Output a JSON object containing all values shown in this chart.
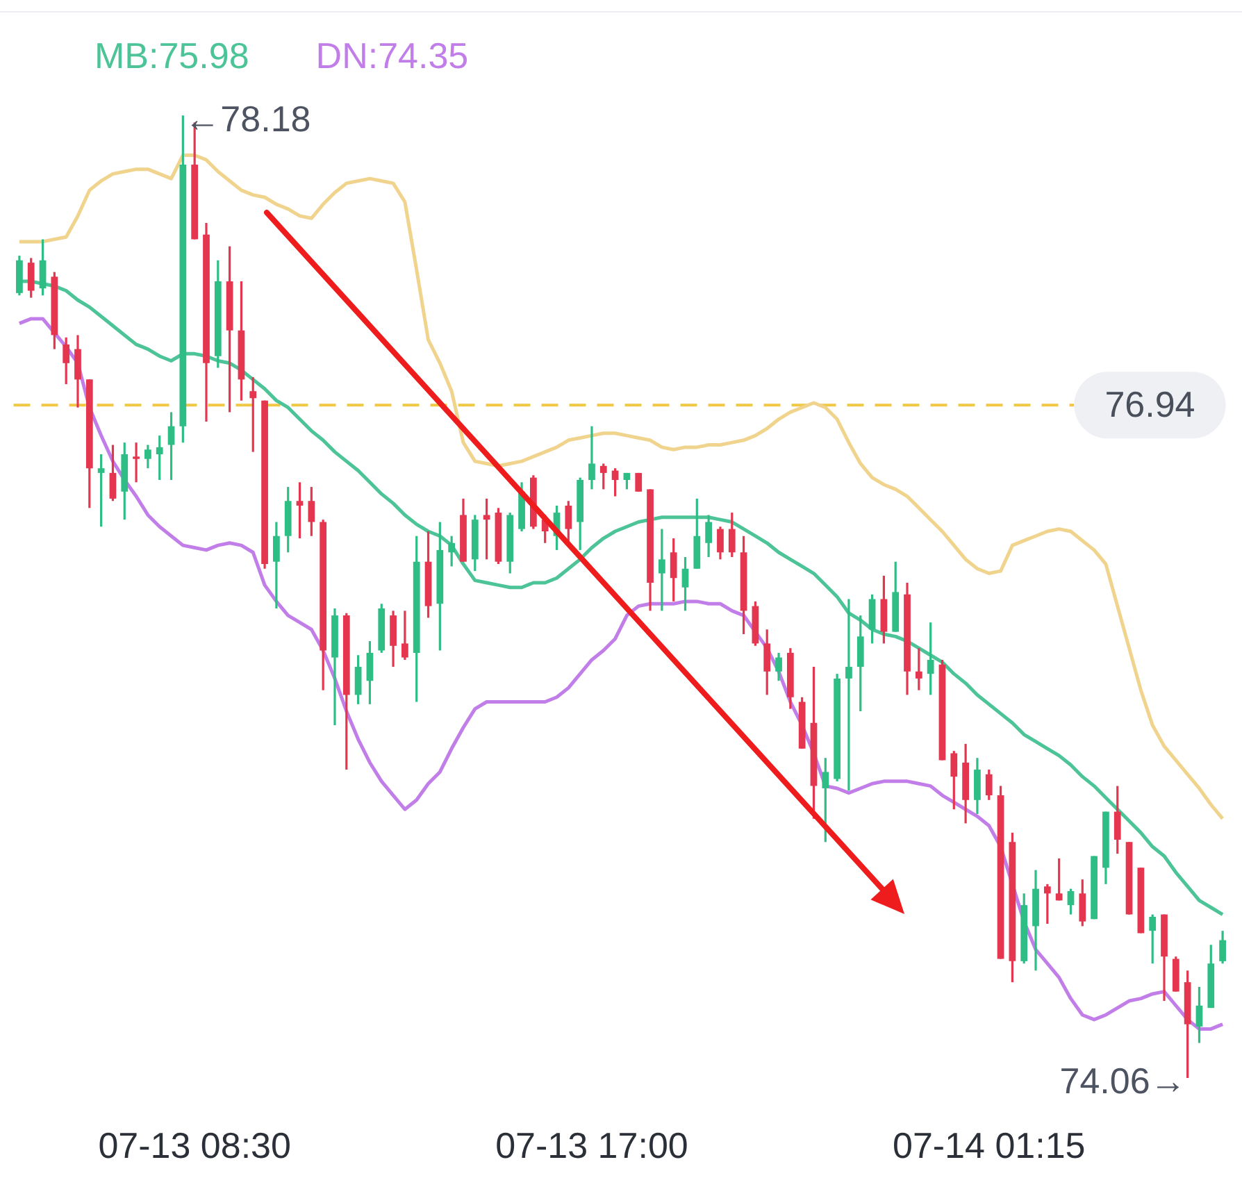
{
  "chart_data": {
    "type": "candlestick",
    "categories": [
      null,
      null,
      null,
      null,
      null,
      null,
      null,
      null,
      null,
      null,
      null,
      null,
      null,
      null,
      null,
      "07-13 08:30",
      null,
      null,
      null,
      null,
      null,
      null,
      null,
      null,
      null,
      null,
      null,
      null,
      null,
      null,
      null,
      null,
      null,
      null,
      null,
      null,
      null,
      null,
      null,
      null,
      null,
      null,
      null,
      null,
      null,
      null,
      null,
      null,
      null,
      "07-13 17:00",
      null,
      null,
      null,
      null,
      null,
      null,
      null,
      null,
      null,
      null,
      null,
      null,
      null,
      null,
      null,
      null,
      null,
      null,
      null,
      null,
      null,
      null,
      null,
      null,
      null,
      null,
      null,
      null,
      null,
      null,
      null,
      null,
      null,
      "07-14 01:15",
      null,
      null,
      null,
      null,
      null,
      null,
      null,
      null,
      null,
      null,
      null,
      null,
      null,
      null,
      null,
      null,
      null,
      null,
      null,
      null
    ],
    "ohlc": [
      [
        77.42,
        77.58,
        77.41,
        77.56
      ],
      [
        77.55,
        77.57,
        77.4,
        77.43
      ],
      [
        77.44,
        77.65,
        77.41,
        77.56
      ],
      [
        77.49,
        77.51,
        77.18,
        77.24
      ],
      [
        77.2,
        77.23,
        77.03,
        77.12
      ],
      [
        77.18,
        77.24,
        76.93,
        77.05
      ],
      [
        77.05,
        77.05,
        76.5,
        76.67
      ],
      [
        76.65,
        76.73,
        76.42,
        76.67
      ],
      [
        76.65,
        76.77,
        76.53,
        76.54
      ],
      [
        76.57,
        76.78,
        76.45,
        76.73
      ],
      [
        76.72,
        76.78,
        76.61,
        76.71
      ],
      [
        76.71,
        76.77,
        76.67,
        76.75
      ],
      [
        76.73,
        76.81,
        76.62,
        76.76
      ],
      [
        76.77,
        76.91,
        76.62,
        76.85
      ],
      [
        76.85,
        78.18,
        76.78,
        77.97
      ],
      [
        77.97,
        78.15,
        77.65,
        77.65
      ],
      [
        77.67,
        77.72,
        76.87,
        77.12
      ],
      [
        77.15,
        77.56,
        77.1,
        77.47
      ],
      [
        77.47,
        77.62,
        76.91,
        77.26
      ],
      [
        77.26,
        77.47,
        76.96,
        77.05
      ],
      [
        77.0,
        77.06,
        76.74,
        76.97
      ],
      [
        76.96,
        76.96,
        76.24,
        76.26
      ],
      [
        76.27,
        76.44,
        76.07,
        76.38
      ],
      [
        76.38,
        76.59,
        76.31,
        76.53
      ],
      [
        76.53,
        76.61,
        76.37,
        76.51
      ],
      [
        76.53,
        76.59,
        76.38,
        76.44
      ],
      [
        76.44,
        76.45,
        75.72,
        75.89
      ],
      [
        75.86,
        76.07,
        75.57,
        76.04
      ],
      [
        76.04,
        76.05,
        75.38,
        75.7
      ],
      [
        75.7,
        75.87,
        75.66,
        75.82
      ],
      [
        75.76,
        75.93,
        75.66,
        75.88
      ],
      [
        75.89,
        76.09,
        75.88,
        76.07
      ],
      [
        76.04,
        76.06,
        75.82,
        75.91
      ],
      [
        75.92,
        76.06,
        75.85,
        75.86
      ],
      [
        75.88,
        76.38,
        75.67,
        76.27
      ],
      [
        76.27,
        76.4,
        76.03,
        76.08
      ],
      [
        76.09,
        76.44,
        75.89,
        76.32
      ],
      [
        76.31,
        76.38,
        76.25,
        76.35
      ],
      [
        76.47,
        76.54,
        76.27,
        76.27
      ],
      [
        76.28,
        76.47,
        76.23,
        76.45
      ],
      [
        76.47,
        76.54,
        76.28,
        76.45
      ],
      [
        76.48,
        76.5,
        76.26,
        76.27
      ],
      [
        76.27,
        76.48,
        76.22,
        76.47
      ],
      [
        76.41,
        76.61,
        76.4,
        76.57
      ],
      [
        76.63,
        76.64,
        76.41,
        76.42
      ],
      [
        76.45,
        76.47,
        76.35,
        76.4
      ],
      [
        76.38,
        76.51,
        76.32,
        76.48
      ],
      [
        76.51,
        76.53,
        76.35,
        76.41
      ],
      [
        76.44,
        76.63,
        76.32,
        76.62
      ],
      [
        76.62,
        76.85,
        76.58,
        76.69
      ],
      [
        76.68,
        76.69,
        76.58,
        76.65
      ],
      [
        76.66,
        76.67,
        76.55,
        76.62
      ],
      [
        76.62,
        76.65,
        76.58,
        76.65
      ],
      [
        76.65,
        76.65,
        76.57,
        76.57
      ],
      [
        76.58,
        76.58,
        76.06,
        76.18
      ],
      [
        76.22,
        76.41,
        76.06,
        76.28
      ],
      [
        76.31,
        76.37,
        76.1,
        76.2
      ],
      [
        76.16,
        76.29,
        76.06,
        76.24
      ],
      [
        76.24,
        76.54,
        76.24,
        76.38
      ],
      [
        76.35,
        76.47,
        76.29,
        76.44
      ],
      [
        76.41,
        76.42,
        76.28,
        76.31
      ],
      [
        76.41,
        76.48,
        76.29,
        76.31
      ],
      [
        76.31,
        76.38,
        75.96,
        76.06
      ],
      [
        76.08,
        76.1,
        75.91,
        75.92
      ],
      [
        75.92,
        75.98,
        75.7,
        75.8
      ],
      [
        75.8,
        75.88,
        75.76,
        75.86
      ],
      [
        75.88,
        75.9,
        75.64,
        75.69
      ],
      [
        75.67,
        75.69,
        75.47,
        75.47
      ],
      [
        75.58,
        75.82,
        75.17,
        75.31
      ],
      [
        75.3,
        75.43,
        75.07,
        75.37
      ],
      [
        75.34,
        75.79,
        75.33,
        75.77
      ],
      [
        75.77,
        76.11,
        75.29,
        75.82
      ],
      [
        75.82,
        76.04,
        75.63,
        75.95
      ],
      [
        75.98,
        76.13,
        75.92,
        76.11
      ],
      [
        76.11,
        76.21,
        75.92,
        75.97
      ],
      [
        75.97,
        76.27,
        75.97,
        76.14
      ],
      [
        76.13,
        76.18,
        75.7,
        75.8
      ],
      [
        75.8,
        75.9,
        75.72,
        75.77
      ],
      [
        75.79,
        76.01,
        75.7,
        75.85
      ],
      [
        75.83,
        75.85,
        75.42,
        75.42
      ],
      [
        75.45,
        75.46,
        75.21,
        75.35
      ],
      [
        75.41,
        75.49,
        75.15,
        75.25
      ],
      [
        75.25,
        75.43,
        75.19,
        75.38
      ],
      [
        75.36,
        75.38,
        75.25,
        75.27
      ],
      [
        75.27,
        75.31,
        74.57,
        74.57
      ],
      [
        75.07,
        75.11,
        74.47,
        74.56
      ],
      [
        74.56,
        74.85,
        74.55,
        74.8
      ],
      [
        74.71,
        74.95,
        74.52,
        74.87
      ],
      [
        74.88,
        74.89,
        74.72,
        74.85
      ],
      [
        74.85,
        75.0,
        74.82,
        74.82
      ],
      [
        74.8,
        74.87,
        74.76,
        74.86
      ],
      [
        74.85,
        74.91,
        74.71,
        74.73
      ],
      [
        74.74,
        75.01,
        74.74,
        75.01
      ],
      [
        74.96,
        75.2,
        74.89,
        75.2
      ],
      [
        75.2,
        75.31,
        75.02,
        75.08
      ],
      [
        75.07,
        75.07,
        74.76,
        74.76
      ],
      [
        74.96,
        74.96,
        74.68,
        74.68
      ],
      [
        74.69,
        74.76,
        74.55,
        74.75
      ],
      [
        74.76,
        74.76,
        74.39,
        74.58
      ],
      [
        74.57,
        74.58,
        74.43,
        74.43
      ],
      [
        74.47,
        74.52,
        74.06,
        74.29
      ],
      [
        74.28,
        74.45,
        74.21,
        74.37
      ],
      [
        74.36,
        74.63,
        74.36,
        74.55
      ],
      [
        74.56,
        74.69,
        74.55,
        74.65
      ]
    ],
    "series": [
      {
        "type": "line",
        "color": "#f0d38c",
        "values": [
          77.64,
          77.64,
          77.64,
          77.65,
          77.66,
          77.75,
          77.86,
          77.9,
          77.93,
          77.94,
          77.95,
          77.95,
          77.93,
          77.91,
          78.01,
          78.01,
          77.99,
          77.94,
          77.9,
          77.86,
          77.84,
          77.83,
          77.8,
          77.78,
          77.75,
          77.74,
          77.8,
          77.85,
          77.89,
          77.9,
          77.91,
          77.9,
          77.89,
          77.81,
          77.52,
          77.22,
          77.12,
          77.0,
          76.78,
          76.7,
          76.69,
          76.68,
          76.69,
          76.7,
          76.72,
          76.74,
          76.76,
          76.79,
          76.8,
          76.81,
          76.82,
          76.82,
          76.81,
          76.8,
          76.79,
          76.76,
          76.75,
          76.76,
          76.76,
          76.77,
          76.77,
          76.78,
          76.79,
          76.81,
          76.84,
          76.88,
          76.91,
          76.93,
          76.95,
          76.93,
          76.88,
          76.78,
          76.69,
          76.63,
          76.6,
          76.58,
          76.55,
          76.5,
          76.45,
          76.4,
          76.34,
          76.28,
          76.24,
          76.22,
          76.23,
          76.34,
          76.36,
          76.38,
          76.4,
          76.41,
          76.4,
          76.36,
          76.32,
          76.26,
          76.08,
          75.9,
          75.72,
          75.57,
          75.48,
          75.42,
          75.36,
          75.3,
          75.23,
          75.17
        ]
      },
      {
        "type": "line",
        "name": "MB:75.98",
        "color": "#4cc497",
        "values": [
          77.47,
          77.47,
          77.46,
          77.45,
          77.43,
          77.39,
          77.36,
          77.32,
          77.28,
          77.24,
          77.2,
          77.18,
          77.15,
          77.13,
          77.16,
          77.16,
          77.15,
          77.13,
          77.12,
          77.09,
          77.05,
          77.01,
          76.96,
          76.93,
          76.88,
          76.83,
          76.79,
          76.74,
          76.7,
          76.66,
          76.61,
          76.56,
          76.52,
          76.47,
          76.43,
          76.4,
          76.38,
          76.34,
          76.26,
          76.19,
          76.18,
          76.17,
          76.16,
          76.16,
          76.18,
          76.18,
          76.2,
          76.24,
          76.28,
          76.33,
          76.37,
          76.4,
          76.42,
          76.44,
          76.45,
          76.46,
          76.46,
          76.46,
          76.46,
          76.46,
          76.45,
          76.44,
          76.41,
          76.38,
          76.35,
          76.31,
          76.28,
          76.25,
          76.22,
          76.17,
          76.12,
          76.05,
          76.02,
          75.98,
          75.96,
          75.95,
          75.93,
          75.9,
          75.87,
          75.84,
          75.79,
          75.75,
          75.7,
          75.66,
          75.62,
          75.58,
          75.53,
          75.5,
          75.47,
          75.44,
          75.4,
          75.35,
          75.31,
          75.26,
          75.21,
          75.16,
          75.11,
          75.05,
          75.01,
          74.94,
          74.88,
          74.82,
          74.79,
          74.76
        ]
      },
      {
        "type": "line",
        "name": "DN:74.35",
        "color": "#c27ee8",
        "values": [
          77.29,
          77.31,
          77.31,
          77.25,
          77.19,
          77.12,
          76.93,
          76.81,
          76.7,
          76.62,
          76.55,
          76.47,
          76.42,
          76.38,
          76.34,
          76.33,
          76.32,
          76.34,
          76.35,
          76.34,
          76.31,
          76.17,
          76.1,
          76.04,
          76.01,
          75.98,
          75.89,
          75.77,
          75.63,
          75.51,
          75.41,
          75.33,
          75.27,
          75.21,
          75.25,
          75.32,
          75.37,
          75.47,
          75.56,
          75.64,
          75.67,
          75.67,
          75.67,
          75.67,
          75.67,
          75.67,
          75.69,
          75.73,
          75.79,
          75.85,
          75.89,
          75.94,
          76.04,
          76.08,
          76.09,
          76.09,
          76.09,
          76.1,
          76.1,
          76.09,
          76.09,
          76.06,
          76.04,
          75.97,
          75.9,
          75.8,
          75.67,
          75.57,
          75.45,
          75.31,
          75.3,
          75.28,
          75.3,
          75.32,
          75.33,
          75.33,
          75.33,
          75.32,
          75.31,
          75.27,
          75.24,
          75.21,
          75.18,
          75.14,
          75.05,
          74.89,
          74.73,
          74.61,
          74.55,
          74.49,
          74.4,
          74.33,
          74.31,
          74.33,
          74.36,
          74.39,
          74.4,
          74.42,
          74.43,
          74.37,
          74.31,
          74.27,
          74.27,
          74.29
        ]
      }
    ],
    "ref_lines": [
      {
        "axis": "y",
        "value": 76.94,
        "label": "76.94",
        "color": "#f2c744",
        "line_style": "dashed"
      }
    ],
    "annotations": [
      "←78.18",
      "74.06→"
    ],
    "legend": "top left",
    "tick_labels": "x"
  }
}
